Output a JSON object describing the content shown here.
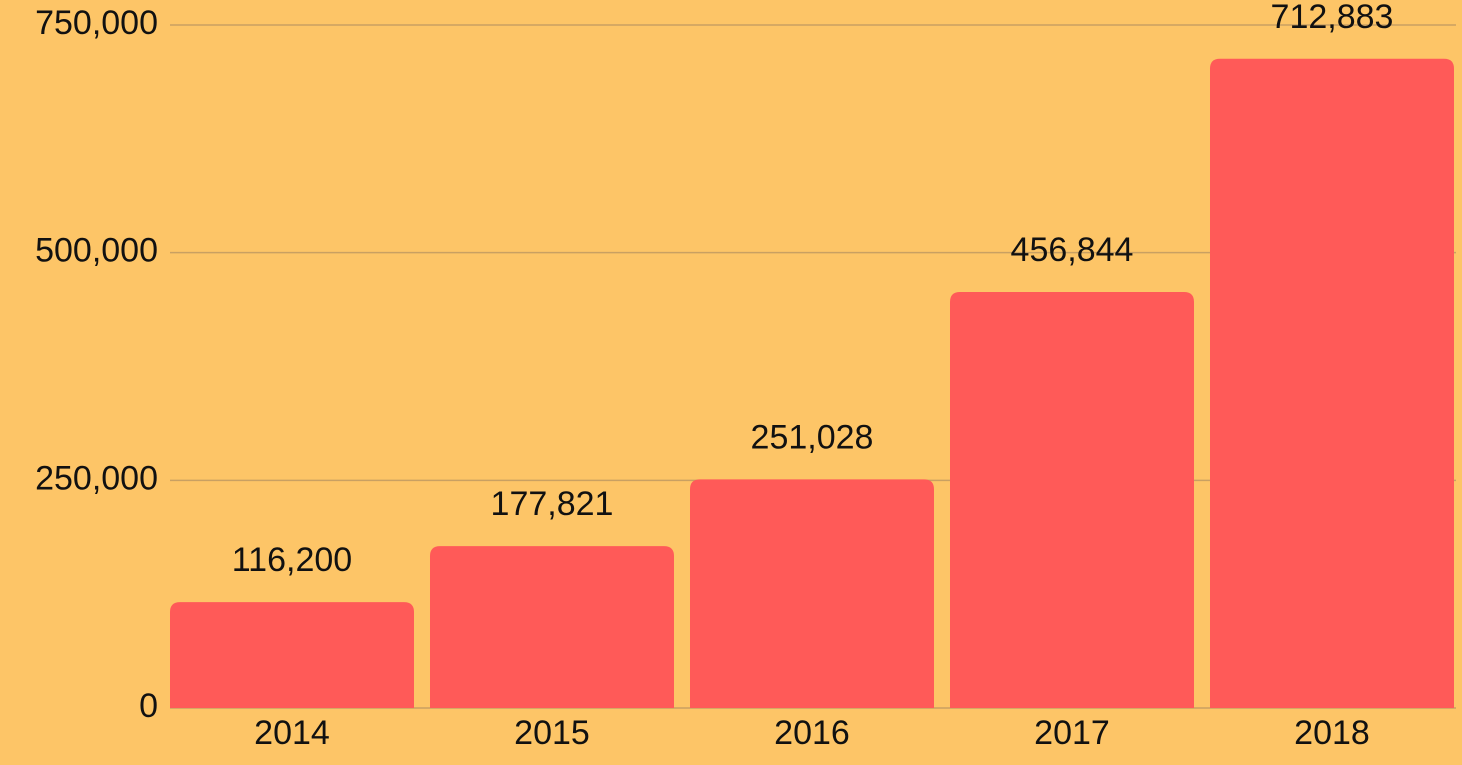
{
  "chart_data": {
    "type": "bar",
    "categories": [
      "2014",
      "2015",
      "2016",
      "2017",
      "2018"
    ],
    "values": [
      116200,
      177821,
      251028,
      456844,
      712883
    ],
    "value_labels": [
      "116,200",
      "177,821",
      "251,028",
      "456,844",
      "712,883"
    ],
    "color": "#ff5a58",
    "ylim": [
      0,
      750000
    ],
    "yticks": [
      0,
      {
        "value": 250000,
        "label": "250,000"
      },
      {
        "value": 500000,
        "label": "500,000"
      },
      {
        "value": 750000,
        "label": "750,000"
      }
    ],
    "grid": true
  }
}
